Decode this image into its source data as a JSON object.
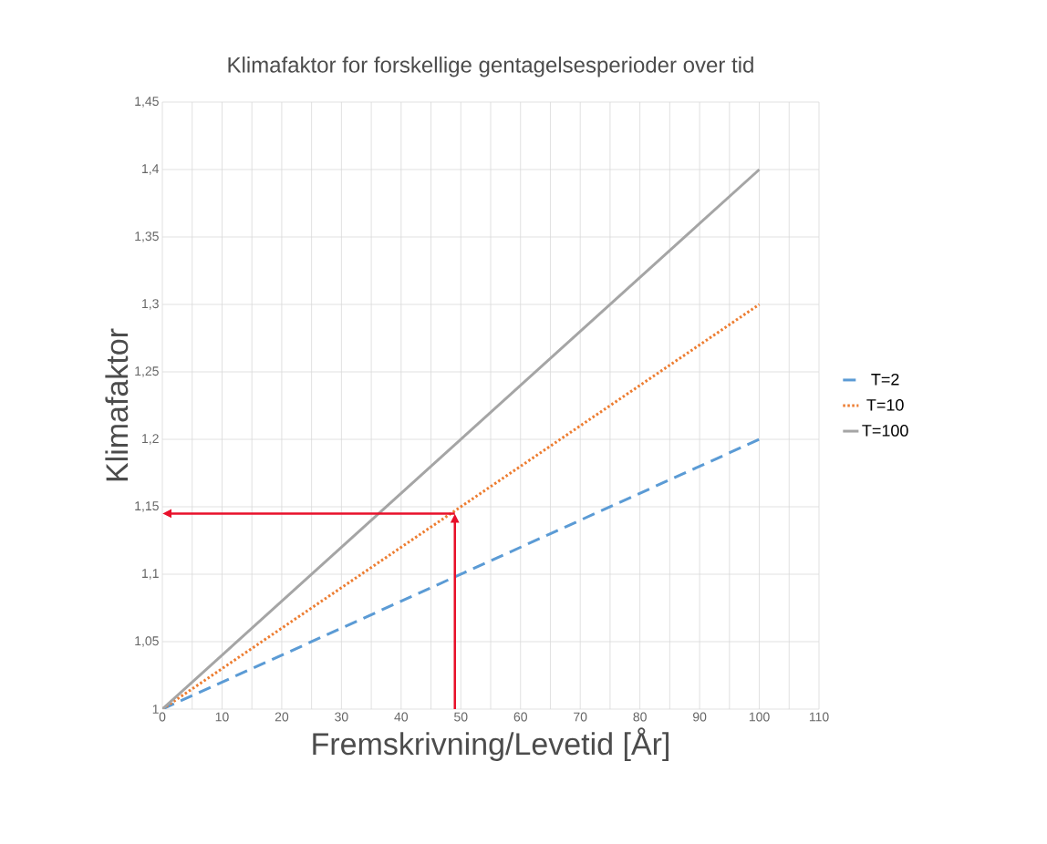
{
  "chart_data": {
    "type": "line",
    "title": "Klimafaktor for forskellige gentagelsesperioder over tid",
    "xlabel": "Fremskrivning/Levetid [År]",
    "ylabel": "Klimafaktor",
    "x": [
      0,
      100
    ],
    "series": [
      {
        "name": "T=2",
        "color": "#5b9bd5",
        "line_style": "dashed",
        "values": [
          1,
          1.2
        ]
      },
      {
        "name": "T=10",
        "color": "#ed7d31",
        "line_style": "dotted",
        "values": [
          1,
          1.3
        ]
      },
      {
        "name": "T=100",
        "color": "#a5a5a5",
        "line_style": "solid",
        "values": [
          1,
          1.4
        ]
      }
    ],
    "xlim": [
      0,
      110
    ],
    "xticks": [
      0,
      10,
      20,
      30,
      40,
      50,
      60,
      70,
      80,
      90,
      100,
      110
    ],
    "ylim": [
      1,
      1.45
    ],
    "yticks": [
      {
        "value": 1,
        "label": "1"
      },
      {
        "value": 1.05,
        "label": "1,05"
      },
      {
        "value": 1.1,
        "label": "1,1"
      },
      {
        "value": 1.15,
        "label": "1,15"
      },
      {
        "value": 1.2,
        "label": "1,2"
      },
      {
        "value": 1.25,
        "label": "1,25"
      },
      {
        "value": 1.3,
        "label": "1,3"
      },
      {
        "value": 1.35,
        "label": "1,35"
      },
      {
        "value": 1.4,
        "label": "1,4"
      },
      {
        "value": 1.45,
        "label": "1,45"
      }
    ],
    "grid": true,
    "legend": "right"
  }
}
